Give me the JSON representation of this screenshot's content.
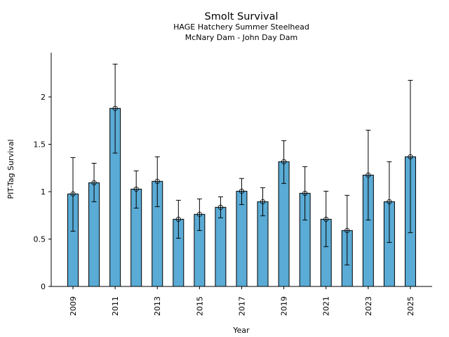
{
  "chart_data": {
    "type": "bar",
    "title": "Smolt Survival",
    "subtitle_lines": [
      "HAGE Hatchery Summer Steelhead",
      "McNary Dam - John Day Dam"
    ],
    "xlabel": "Year",
    "ylabel": "PIT-Tag Survival",
    "ylim": [
      0,
      2.48
    ],
    "yticks": [
      0,
      0.5,
      1,
      1.5,
      2
    ],
    "ytick_labels": [
      "0",
      "0.5",
      "1",
      "1.5",
      "2"
    ],
    "xtick_labels": [
      "2009",
      "2011",
      "2013",
      "2015",
      "2017",
      "2019",
      "2021",
      "2023",
      "2025"
    ],
    "grid": false,
    "bar_color": "#5aabd5",
    "categories": [
      "2009",
      "2010",
      "2011",
      "2012",
      "2013",
      "2014",
      "2015",
      "2016",
      "2017",
      "2018",
      "2019",
      "2020",
      "2021",
      "2022",
      "2023",
      "2024",
      "2025"
    ],
    "values": [
      0.976,
      1.094,
      1.879,
      1.027,
      1.109,
      0.709,
      0.761,
      0.835,
      1.005,
      0.894,
      1.316,
      0.983,
      0.709,
      0.59,
      1.175,
      0.894,
      1.368
    ],
    "error_upper": [
      1.36,
      1.3,
      2.346,
      1.22,
      1.368,
      0.909,
      0.924,
      0.946,
      1.139,
      1.042,
      1.538,
      1.264,
      1.005,
      0.961,
      1.649,
      1.316,
      2.175
    ],
    "error_lower": [
      0.583,
      0.894,
      1.407,
      0.827,
      0.842,
      0.509,
      0.59,
      0.724,
      0.864,
      0.746,
      1.087,
      0.701,
      0.42,
      0.227,
      0.701,
      0.464,
      0.568
    ]
  }
}
